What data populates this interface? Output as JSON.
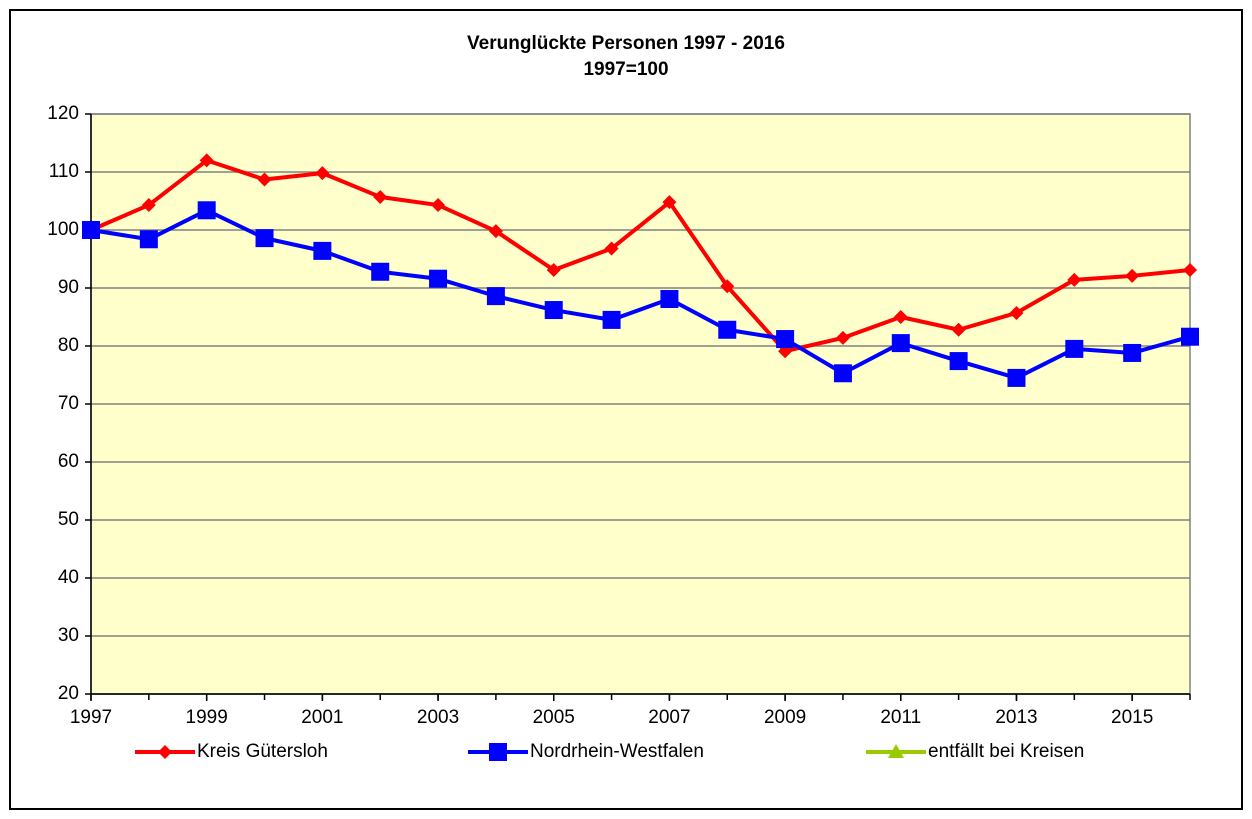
{
  "chart_data": {
    "type": "line",
    "title": "Verunglückte Personen 1997 - 2016",
    "subtitle": "1997=100",
    "x": [
      1997,
      1998,
      1999,
      2000,
      2001,
      2002,
      2003,
      2004,
      2005,
      2006,
      2007,
      2008,
      2009,
      2010,
      2011,
      2012,
      2013,
      2014,
      2015,
      2016
    ],
    "xlim": [
      1997,
      2016
    ],
    "xticks": [
      1997,
      1999,
      2001,
      2003,
      2005,
      2007,
      2009,
      2011,
      2013,
      2015
    ],
    "ylim": [
      20,
      120
    ],
    "yticks": [
      20,
      30,
      40,
      50,
      60,
      70,
      80,
      90,
      100,
      110,
      120
    ],
    "grid": true,
    "legend": "bottom",
    "plot_background": "#ffffcc",
    "series": [
      {
        "name": "Kreis Gütersloh",
        "color": "#ff0000",
        "marker": "diamond",
        "values": [
          100,
          104.3,
          112,
          108.7,
          109.8,
          105.7,
          104.3,
          99.8,
          93.1,
          96.8,
          104.8,
          90.3,
          79.1,
          81.4,
          85,
          82.8,
          85.7,
          91.4,
          92.1,
          93.1
        ]
      },
      {
        "name": "Nordrhein-Westfalen",
        "color": "#0000ff",
        "marker": "square",
        "values": [
          100,
          98.4,
          103.4,
          98.6,
          96.4,
          92.8,
          91.6,
          88.6,
          86.2,
          84.5,
          88.1,
          82.8,
          81.2,
          75.3,
          80.5,
          77.4,
          74.5,
          79.5,
          78.8,
          81.6
        ]
      },
      {
        "name": "entfällt bei Kreisen",
        "color": "#99cc00",
        "marker": "triangle",
        "values": [
          null,
          null,
          null,
          null,
          null,
          null,
          null,
          null,
          null,
          null,
          null,
          null,
          null,
          null,
          null,
          null,
          null,
          null,
          null,
          null
        ]
      }
    ]
  }
}
